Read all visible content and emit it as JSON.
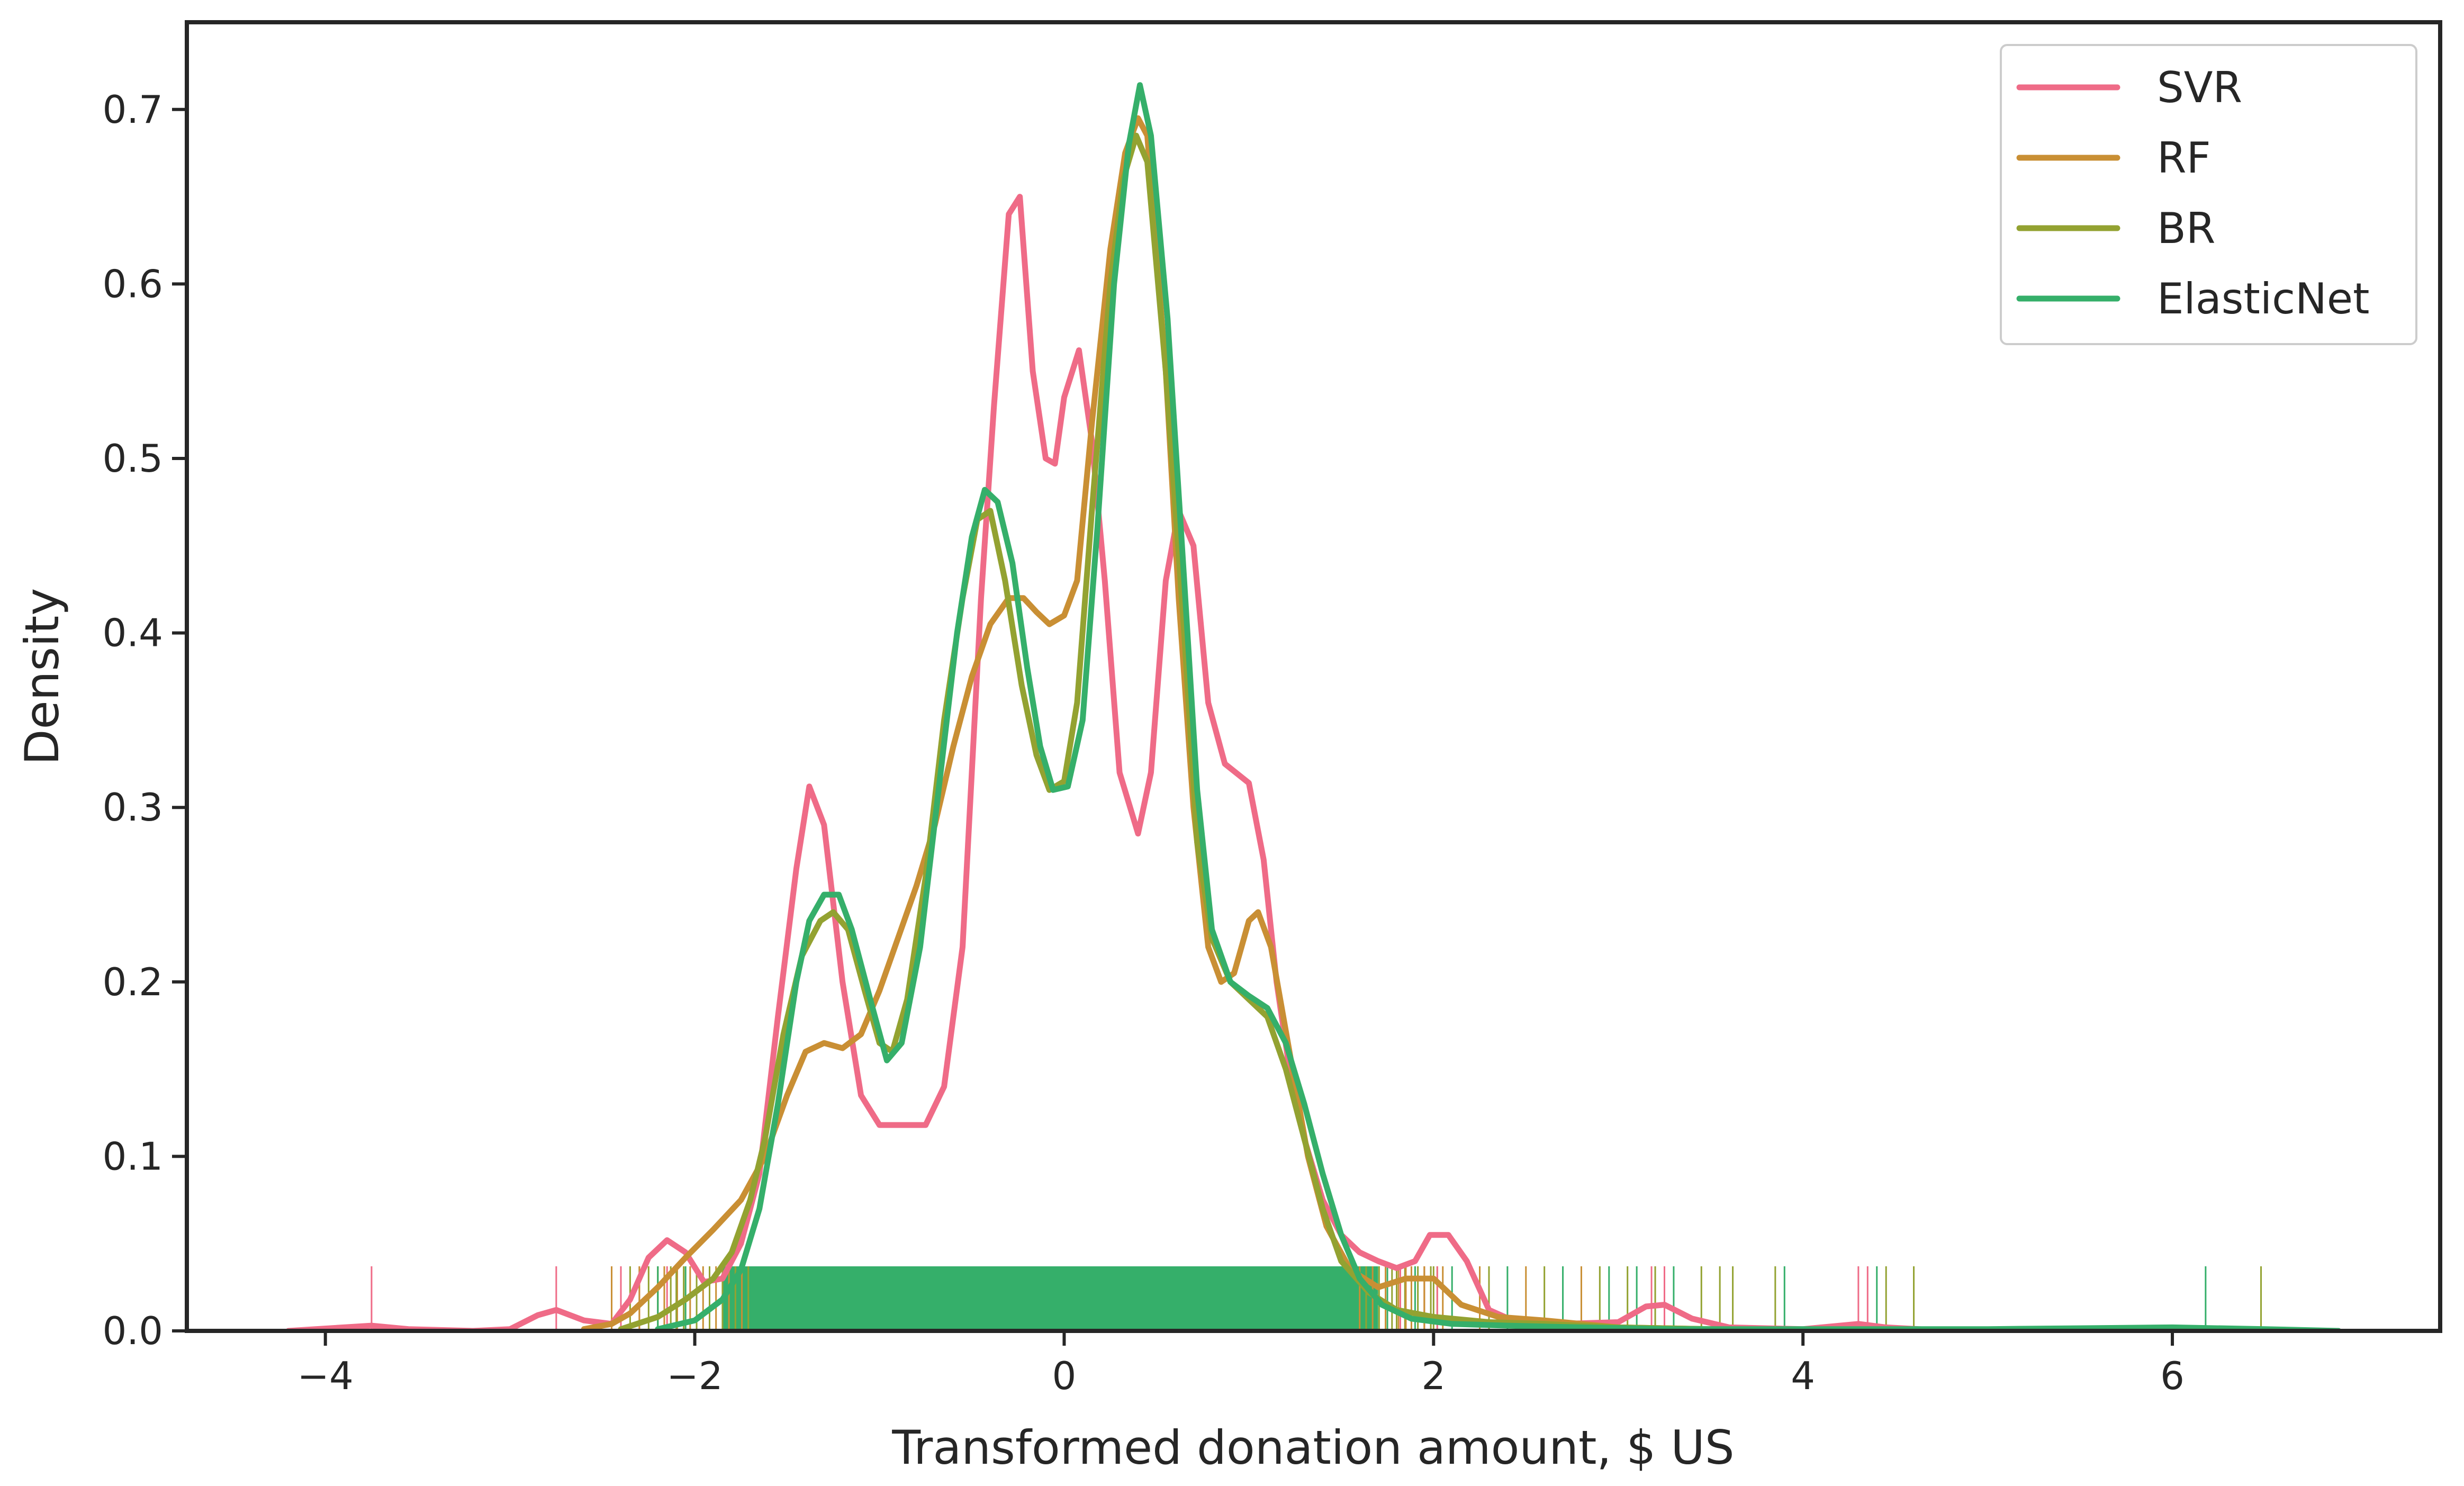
{
  "chart_data": {
    "type": "line",
    "title": "",
    "xlabel": "Transformed donation amount, $ US",
    "ylabel": "Density",
    "xlim": [
      -4.75,
      7.45
    ],
    "ylim": [
      0,
      0.75
    ],
    "xticks": [
      "−4",
      "−2",
      "0",
      "2",
      "4",
      "6"
    ],
    "xtick_values": [
      -4,
      -2,
      0,
      2,
      4,
      6
    ],
    "yticks": [
      "0.0",
      "0.1",
      "0.2",
      "0.3",
      "0.4",
      "0.5",
      "0.6",
      "0.7"
    ],
    "ytick_values": [
      0,
      0.1,
      0.2,
      0.3,
      0.4,
      0.5,
      0.6,
      0.7
    ],
    "grid": false,
    "legend_position": "top-right",
    "rug_dense_band": [
      -1.85,
      1.7
    ],
    "rug_height": 0.037,
    "series": [
      {
        "name": "SVR",
        "color": "#ef6b87",
        "points": [
          [
            -4.2,
            0
          ],
          [
            -3.9,
            0.002
          ],
          [
            -3.75,
            0.003
          ],
          [
            -3.55,
            0.001
          ],
          [
            -3.2,
            0
          ],
          [
            -3.0,
            0.001
          ],
          [
            -2.85,
            0.009
          ],
          [
            -2.75,
            0.012
          ],
          [
            -2.6,
            0.006
          ],
          [
            -2.45,
            0.004
          ],
          [
            -2.35,
            0.018
          ],
          [
            -2.25,
            0.042
          ],
          [
            -2.15,
            0.052
          ],
          [
            -2.05,
            0.045
          ],
          [
            -1.95,
            0.028
          ],
          [
            -1.85,
            0.03
          ],
          [
            -1.75,
            0.05
          ],
          [
            -1.65,
            0.09
          ],
          [
            -1.55,
            0.18
          ],
          [
            -1.45,
            0.265
          ],
          [
            -1.38,
            0.312
          ],
          [
            -1.3,
            0.29
          ],
          [
            -1.2,
            0.2
          ],
          [
            -1.1,
            0.135
          ],
          [
            -1.0,
            0.118
          ],
          [
            -0.9,
            0.118
          ],
          [
            -0.75,
            0.118
          ],
          [
            -0.65,
            0.14
          ],
          [
            -0.55,
            0.22
          ],
          [
            -0.45,
            0.42
          ],
          [
            -0.38,
            0.53
          ],
          [
            -0.3,
            0.64
          ],
          [
            -0.24,
            0.65
          ],
          [
            -0.17,
            0.55
          ],
          [
            -0.1,
            0.5
          ],
          [
            -0.05,
            0.497
          ],
          [
            0.0,
            0.535
          ],
          [
            0.08,
            0.562
          ],
          [
            0.15,
            0.51
          ],
          [
            0.22,
            0.43
          ],
          [
            0.3,
            0.32
          ],
          [
            0.4,
            0.285
          ],
          [
            0.47,
            0.32
          ],
          [
            0.55,
            0.43
          ],
          [
            0.62,
            0.47
          ],
          [
            0.7,
            0.45
          ],
          [
            0.78,
            0.36
          ],
          [
            0.87,
            0.325
          ],
          [
            1.0,
            0.314
          ],
          [
            1.08,
            0.27
          ],
          [
            1.15,
            0.2
          ],
          [
            1.22,
            0.15
          ],
          [
            1.3,
            0.11
          ],
          [
            1.4,
            0.075
          ],
          [
            1.5,
            0.055
          ],
          [
            1.6,
            0.045
          ],
          [
            1.7,
            0.04
          ],
          [
            1.8,
            0.036
          ],
          [
            1.9,
            0.04
          ],
          [
            1.98,
            0.055
          ],
          [
            2.08,
            0.055
          ],
          [
            2.18,
            0.04
          ],
          [
            2.3,
            0.012
          ],
          [
            2.45,
            0.005
          ],
          [
            2.7,
            0.004
          ],
          [
            3.0,
            0.005
          ],
          [
            3.15,
            0.014
          ],
          [
            3.25,
            0.015
          ],
          [
            3.4,
            0.007
          ],
          [
            3.6,
            0.002
          ],
          [
            4.0,
            0.001
          ],
          [
            4.3,
            0.004
          ],
          [
            4.45,
            0.002
          ],
          [
            4.8,
            0
          ]
        ]
      },
      {
        "name": "RF",
        "color": "#c98f34",
        "points": [
          [
            -2.6,
            0.001
          ],
          [
            -2.45,
            0.004
          ],
          [
            -2.35,
            0.01
          ],
          [
            -2.2,
            0.025
          ],
          [
            -2.05,
            0.042
          ],
          [
            -1.9,
            0.058
          ],
          [
            -1.75,
            0.075
          ],
          [
            -1.62,
            0.1
          ],
          [
            -1.5,
            0.135
          ],
          [
            -1.4,
            0.16
          ],
          [
            -1.3,
            0.165
          ],
          [
            -1.2,
            0.162
          ],
          [
            -1.1,
            0.17
          ],
          [
            -1.0,
            0.195
          ],
          [
            -0.9,
            0.225
          ],
          [
            -0.8,
            0.255
          ],
          [
            -0.7,
            0.29
          ],
          [
            -0.6,
            0.335
          ],
          [
            -0.5,
            0.375
          ],
          [
            -0.4,
            0.405
          ],
          [
            -0.3,
            0.42
          ],
          [
            -0.22,
            0.42
          ],
          [
            -0.15,
            0.412
          ],
          [
            -0.08,
            0.405
          ],
          [
            0.0,
            0.41
          ],
          [
            0.07,
            0.43
          ],
          [
            0.15,
            0.52
          ],
          [
            0.25,
            0.62
          ],
          [
            0.33,
            0.675
          ],
          [
            0.4,
            0.695
          ],
          [
            0.45,
            0.685
          ],
          [
            0.55,
            0.55
          ],
          [
            0.62,
            0.42
          ],
          [
            0.7,
            0.3
          ],
          [
            0.78,
            0.22
          ],
          [
            0.85,
            0.2
          ],
          [
            0.92,
            0.205
          ],
          [
            1.0,
            0.235
          ],
          [
            1.05,
            0.24
          ],
          [
            1.12,
            0.22
          ],
          [
            1.22,
            0.16
          ],
          [
            1.32,
            0.1
          ],
          [
            1.42,
            0.06
          ],
          [
            1.55,
            0.035
          ],
          [
            1.7,
            0.025
          ],
          [
            1.85,
            0.03
          ],
          [
            2.0,
            0.03
          ],
          [
            2.15,
            0.015
          ],
          [
            2.35,
            0.008
          ],
          [
            2.6,
            0.006
          ],
          [
            3.0,
            0.002
          ],
          [
            3.5,
            0.001
          ],
          [
            4.0,
            0
          ]
        ]
      },
      {
        "name": "BR",
        "color": "#93a231",
        "points": [
          [
            -2.4,
            0.001
          ],
          [
            -2.2,
            0.008
          ],
          [
            -2.05,
            0.018
          ],
          [
            -1.9,
            0.03
          ],
          [
            -1.8,
            0.045
          ],
          [
            -1.7,
            0.075
          ],
          [
            -1.62,
            0.11
          ],
          [
            -1.52,
            0.17
          ],
          [
            -1.42,
            0.215
          ],
          [
            -1.32,
            0.235
          ],
          [
            -1.25,
            0.24
          ],
          [
            -1.17,
            0.23
          ],
          [
            -1.08,
            0.195
          ],
          [
            -1.0,
            0.165
          ],
          [
            -0.93,
            0.16
          ],
          [
            -0.85,
            0.19
          ],
          [
            -0.75,
            0.26
          ],
          [
            -0.65,
            0.35
          ],
          [
            -0.55,
            0.42
          ],
          [
            -0.47,
            0.465
          ],
          [
            -0.4,
            0.47
          ],
          [
            -0.32,
            0.43
          ],
          [
            -0.23,
            0.37
          ],
          [
            -0.15,
            0.33
          ],
          [
            -0.08,
            0.31
          ],
          [
            0.0,
            0.315
          ],
          [
            0.07,
            0.36
          ],
          [
            0.15,
            0.47
          ],
          [
            0.25,
            0.6
          ],
          [
            0.32,
            0.66
          ],
          [
            0.39,
            0.685
          ],
          [
            0.45,
            0.67
          ],
          [
            0.55,
            0.55
          ],
          [
            0.65,
            0.4
          ],
          [
            0.72,
            0.28
          ],
          [
            0.8,
            0.225
          ],
          [
            0.9,
            0.2
          ],
          [
            1.0,
            0.19
          ],
          [
            1.1,
            0.18
          ],
          [
            1.2,
            0.15
          ],
          [
            1.3,
            0.11
          ],
          [
            1.4,
            0.07
          ],
          [
            1.5,
            0.04
          ],
          [
            1.65,
            0.022
          ],
          [
            1.8,
            0.012
          ],
          [
            2.0,
            0.008
          ],
          [
            2.3,
            0.005
          ],
          [
            2.6,
            0.004
          ],
          [
            3.0,
            0.002
          ],
          [
            3.5,
            0.001
          ],
          [
            4.2,
            0
          ]
        ]
      },
      {
        "name": "ElasticNet",
        "color": "#35af6a",
        "points": [
          [
            -2.2,
            0.001
          ],
          [
            -2.0,
            0.006
          ],
          [
            -1.85,
            0.018
          ],
          [
            -1.75,
            0.035
          ],
          [
            -1.65,
            0.07
          ],
          [
            -1.55,
            0.13
          ],
          [
            -1.45,
            0.2
          ],
          [
            -1.38,
            0.235
          ],
          [
            -1.3,
            0.25
          ],
          [
            -1.22,
            0.25
          ],
          [
            -1.15,
            0.23
          ],
          [
            -1.05,
            0.19
          ],
          [
            -0.96,
            0.155
          ],
          [
            -0.88,
            0.165
          ],
          [
            -0.78,
            0.22
          ],
          [
            -0.68,
            0.31
          ],
          [
            -0.58,
            0.4
          ],
          [
            -0.5,
            0.455
          ],
          [
            -0.43,
            0.482
          ],
          [
            -0.36,
            0.475
          ],
          [
            -0.28,
            0.44
          ],
          [
            -0.2,
            0.38
          ],
          [
            -0.13,
            0.335
          ],
          [
            -0.06,
            0.31
          ],
          [
            0.02,
            0.312
          ],
          [
            0.1,
            0.35
          ],
          [
            0.18,
            0.46
          ],
          [
            0.27,
            0.6
          ],
          [
            0.35,
            0.68
          ],
          [
            0.41,
            0.714
          ],
          [
            0.47,
            0.685
          ],
          [
            0.56,
            0.58
          ],
          [
            0.65,
            0.43
          ],
          [
            0.72,
            0.31
          ],
          [
            0.8,
            0.23
          ],
          [
            0.9,
            0.2
          ],
          [
            1.0,
            0.192
          ],
          [
            1.1,
            0.185
          ],
          [
            1.2,
            0.165
          ],
          [
            1.3,
            0.13
          ],
          [
            1.4,
            0.09
          ],
          [
            1.5,
            0.055
          ],
          [
            1.6,
            0.03
          ],
          [
            1.72,
            0.015
          ],
          [
            1.88,
            0.007
          ],
          [
            2.1,
            0.004
          ],
          [
            2.4,
            0.003
          ],
          [
            2.8,
            0.002
          ],
          [
            3.3,
            0.001
          ],
          [
            4.0,
            0.001
          ],
          [
            5.0,
            0.001
          ],
          [
            6.0,
            0.002
          ],
          [
            6.5,
            0.001
          ],
          [
            6.9,
            0
          ]
        ]
      }
    ],
    "rug_outliers": [
      {
        "series": "SVR",
        "x": [
          -3.75,
          -2.75,
          -2.4,
          -2.3,
          -2.15,
          1.82,
          1.95,
          2.02,
          3.18,
          3.25,
          4.3,
          4.35
        ]
      },
      {
        "series": "RF",
        "x": [
          -2.45,
          -2.3,
          -2.2,
          -2.05,
          1.85,
          1.95,
          2.05,
          2.25,
          2.5,
          2.8,
          3.2
        ]
      },
      {
        "series": "BR",
        "x": [
          -2.35,
          -2.25,
          -2.1,
          1.8,
          2.0,
          2.3,
          2.6,
          2.9,
          3.05,
          3.2,
          3.45,
          3.55,
          3.62,
          3.85,
          4.45,
          4.6,
          6.48
        ]
      },
      {
        "series": "ElasticNet",
        "x": [
          -2.2,
          -2.05,
          1.75,
          1.9,
          2.1,
          2.4,
          2.7,
          2.95,
          3.1,
          3.3,
          3.9,
          4.4,
          6.18
        ]
      }
    ]
  }
}
